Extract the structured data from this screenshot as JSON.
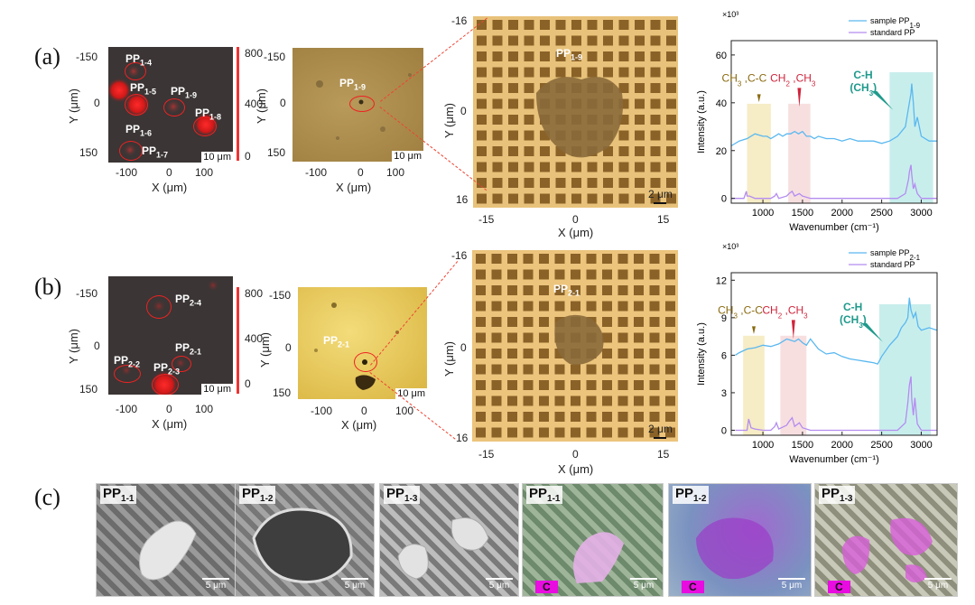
{
  "panels": {
    "a": "(a)",
    "b": "(b)",
    "c": "(c)"
  },
  "a": {
    "map_labels": [
      "PP",
      "1-4",
      "PP",
      "1-5",
      "PP",
      "1-9",
      "PP",
      "1-8",
      "PP",
      "1-6",
      "PP",
      "1-7"
    ],
    "map_y_ticks": [
      "-150",
      "0",
      "150"
    ],
    "map_x_ticks": [
      "-100",
      "0",
      "100"
    ],
    "colorbar_ticks": [
      "800",
      "400",
      "0"
    ],
    "map_scale": "10 μm",
    "optic_label": "PP",
    "optic_label_sub": "1-9",
    "optic_y_ticks": [
      "-150",
      "0",
      "150"
    ],
    "optic_x_ticks": [
      "-100",
      "0",
      "100"
    ],
    "optic_scale": "10 μm",
    "zoom_label": "PP",
    "zoom_label_sub": "1-9",
    "zoom_y_ticks": [
      "-16",
      "0",
      "16"
    ],
    "zoom_x_ticks": [
      "-15",
      "0",
      "15"
    ],
    "zoom_scale": "2 μm"
  },
  "b": {
    "map_labels": [
      "PP",
      "2-4",
      "PP",
      "2-1",
      "PP",
      "2-2",
      "PP",
      "2-3"
    ],
    "map_y_ticks": [
      "-150",
      "0",
      "150"
    ],
    "map_x_ticks": [
      "-100",
      "0",
      "100"
    ],
    "colorbar_ticks": [
      "800",
      "400",
      "0"
    ],
    "map_scale": "10 μm",
    "optic_label": "PP",
    "optic_label_sub": "2-1",
    "optic_y_ticks": [
      "-150",
      "0",
      "150"
    ],
    "optic_x_ticks": [
      "-100",
      "0",
      "100"
    ],
    "optic_scale": "10 μm",
    "zoom_label": "PP",
    "zoom_label_sub": "2-1",
    "zoom_y_ticks": [
      "-16",
      "0",
      "16"
    ],
    "zoom_x_ticks": [
      "-15",
      "0",
      "15"
    ],
    "zoom_scale": "2 μm"
  },
  "axis": {
    "y_um": "Y (μm)",
    "x_um": "X (μm)"
  },
  "sem": [
    {
      "label": "PP",
      "sub": "1-1",
      "scale": "5 μm",
      "badge": ""
    },
    {
      "label": "PP",
      "sub": "1-2",
      "scale": "5 μm",
      "badge": ""
    },
    {
      "label": "PP",
      "sub": "1-3",
      "scale": "5 μm",
      "badge": ""
    },
    {
      "label": "PP",
      "sub": "1-1",
      "scale": "5 μm",
      "badge": "C"
    },
    {
      "label": "PP",
      "sub": "1-2",
      "scale": "5 μm",
      "badge": "C"
    },
    {
      "label": "PP",
      "sub": "1-3",
      "scale": "5 μm",
      "badge": "C"
    }
  ],
  "colors": {
    "sample": "#5ab8f0",
    "standard": "#b48cf0",
    "band_cc": "#f6ecc6",
    "band_ch2": "#f7dfe0",
    "band_ch": "#c8eeec",
    "ann_cc": "#8a6a10",
    "ann_ch2": "#d0243c",
    "ann_ch": "#1f9a8c"
  },
  "chart_data": [
    {
      "type": "line",
      "multiplier": "×10³",
      "xlabel": "Wavenumber (cm⁻¹)",
      "ylabel": "Intensity (a.u.)",
      "xlim": [
        600,
        3200
      ],
      "ylim": [
        -2,
        66
      ],
      "xticks": [
        1000,
        1500,
        2000,
        2500,
        3000
      ],
      "yticks": [
        0,
        20,
        40,
        60
      ],
      "legend": "top-right",
      "series": [
        {
          "name": "sample PP",
          "name_sub": "1-9",
          "x": [
            600,
            700,
            800,
            900,
            1000,
            1050,
            1100,
            1150,
            1200,
            1250,
            1300,
            1350,
            1400,
            1450,
            1500,
            1550,
            1600,
            1650,
            1700,
            1800,
            1900,
            2000,
            2100,
            2200,
            2300,
            2400,
            2500,
            2600,
            2700,
            2800,
            2840,
            2870,
            2880,
            2900,
            2920,
            2950,
            3000,
            3100,
            3200
          ],
          "y": [
            22,
            24,
            25,
            27,
            26,
            26,
            25,
            26,
            27,
            26,
            27,
            27,
            28,
            27,
            28,
            26,
            26,
            25,
            26,
            25,
            25,
            24,
            25,
            24,
            24,
            24,
            23,
            24,
            26,
            30,
            38,
            44,
            48,
            40,
            30,
            34,
            26,
            24,
            24
          ]
        },
        {
          "name": "standard PP",
          "x": [
            600,
            700,
            760,
            790,
            800,
            830,
            900,
            1000,
            1100,
            1150,
            1170,
            1200,
            1300,
            1330,
            1370,
            1400,
            1460,
            1500,
            1600,
            1800,
            2000,
            2200,
            2400,
            2600,
            2700,
            2800,
            2840,
            2850,
            2870,
            2880,
            2900,
            2920,
            2950,
            3000,
            3100,
            3200
          ],
          "y": [
            0,
            0,
            0,
            3,
            1,
            1,
            0,
            0,
            0,
            1,
            2,
            0,
            1,
            2,
            3,
            1,
            2,
            1,
            0,
            0,
            0,
            0,
            0,
            0,
            0,
            2,
            8,
            11,
            14,
            10,
            4,
            6,
            2,
            0,
            0,
            0
          ]
        }
      ],
      "annotations": [
        {
          "text": "CH",
          "sub": "3",
          "rest": " ,C-C",
          "band": [
            800,
            1100
          ]
        },
        {
          "text": "CH",
          "sub": "2",
          "rest": " ,CH",
          "sub2": "3",
          "band": [
            1320,
            1600
          ]
        },
        {
          "text": "C-H",
          "line2": "(CH",
          "sub": "3",
          "line2_end": ")",
          "band": [
            2600,
            3150
          ]
        }
      ]
    },
    {
      "type": "line",
      "multiplier": "×10³",
      "xlabel": "Wavenumber (cm⁻¹)",
      "ylabel": "Intensity (a.u.)",
      "xlim": [
        600,
        3200
      ],
      "ylim": [
        -0.4,
        12.6
      ],
      "xticks": [
        1000,
        1500,
        2000,
        2500,
        3000
      ],
      "yticks": [
        0,
        3,
        6,
        9,
        12
      ],
      "legend": "top-right",
      "series": [
        {
          "name": "sample PP",
          "name_sub": "2-1",
          "x": [
            650,
            700,
            800,
            900,
            1000,
            1100,
            1200,
            1300,
            1350,
            1400,
            1450,
            1500,
            1550,
            1600,
            1700,
            1800,
            1900,
            2000,
            2100,
            2200,
            2300,
            2400,
            2450,
            2500,
            2600,
            2700,
            2750,
            2800,
            2830,
            2850,
            2870,
            2900,
            2930,
            2960,
            3000,
            3100,
            3200
          ],
          "y": [
            6,
            6.2,
            6.5,
            6.6,
            6.8,
            6.7,
            6.9,
            7.3,
            7.2,
            7.1,
            7.3,
            7.0,
            6.8,
            7.3,
            6.5,
            6.1,
            6.2,
            5.9,
            5.7,
            5.6,
            5.5,
            5.4,
            5.3,
            5.9,
            6.8,
            7.5,
            8.2,
            8.6,
            9.0,
            10.6,
            9.6,
            9.0,
            9.4,
            8.3,
            8.0,
            8.2,
            8.0
          ]
        },
        {
          "name": "standard PP",
          "x": [
            650,
            700,
            800,
            820,
            850,
            900,
            1000,
            1100,
            1150,
            1170,
            1200,
            1300,
            1330,
            1370,
            1400,
            1460,
            1500,
            1600,
            1800,
            2000,
            2200,
            2400,
            2600,
            2700,
            2800,
            2830,
            2850,
            2870,
            2880,
            2900,
            2920,
            2950,
            3000,
            3100,
            3200
          ],
          "y": [
            0,
            0,
            0,
            0.9,
            0.2,
            0.1,
            0,
            0,
            0.3,
            0.6,
            0.1,
            0.4,
            0.7,
            1.0,
            0.3,
            0.6,
            0.2,
            0,
            0,
            0,
            0,
            0,
            0,
            0,
            0.6,
            2.2,
            3.6,
            4.3,
            2.5,
            1.2,
            2.6,
            0.5,
            0,
            0,
            0
          ]
        }
      ],
      "annotations": [
        {
          "text": "CH",
          "sub": "3",
          "rest": " ,C-C",
          "band": [
            750,
            1020
          ]
        },
        {
          "text": "CH",
          "sub": "2",
          "rest": " ,CH",
          "sub2": "3",
          "band": [
            1220,
            1550
          ]
        },
        {
          "text": "C-H",
          "line2": "(CH",
          "sub": "3",
          "line2_end": ")",
          "band": [
            2470,
            3120
          ]
        }
      ]
    }
  ]
}
